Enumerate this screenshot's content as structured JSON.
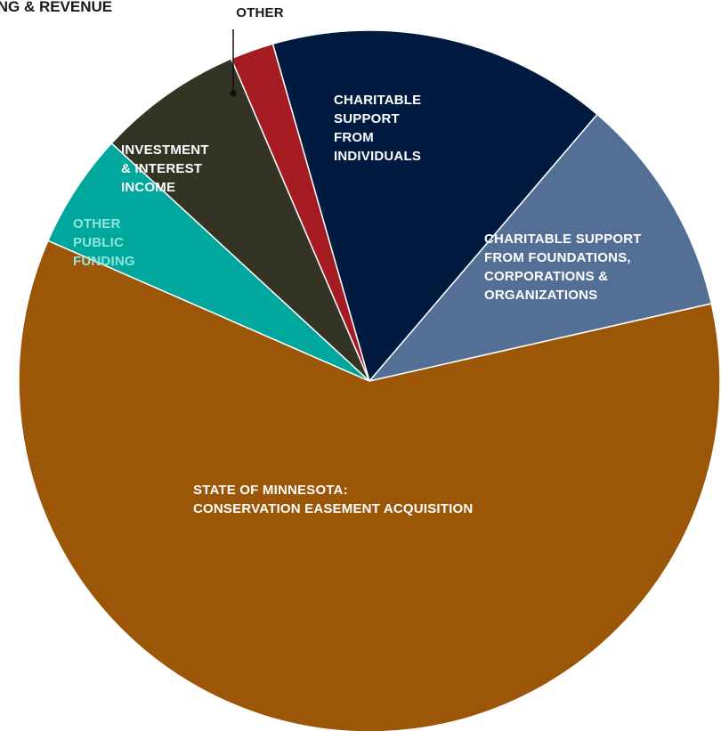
{
  "chart_data": {
    "type": "pie",
    "title": "ING & REVENUE",
    "slices": [
      {
        "label": "CHARITABLE SUPPORT FROM INDIVIDUALS",
        "lines": [
          "CHARITABLE",
          "SUPPORT",
          "FROM",
          "INDIVIDUALS"
        ],
        "value": 15.7,
        "color": "#001a40",
        "text_color": "#ffffff"
      },
      {
        "label": "CHARITABLE SUPPORT FROM FOUNDATIONS, CORPORATIONS & ORGANIZATIONS",
        "lines": [
          "CHARITABLE SUPPORT",
          "FROM FOUNDATIONS,",
          "CORPORATIONS &",
          "ORGANIZATIONS"
        ],
        "value": 10.2,
        "color": "#546f95",
        "text_color": "#ffffff"
      },
      {
        "label": "STATE OF MINNESOTA: CONSERVATION EASEMENT ACQUISITION",
        "lines": [
          "STATE OF MINNESOTA:",
          "CONSERVATION EASEMENT ACQUISITION"
        ],
        "value": 60.1,
        "color": "#9b5608",
        "text_color": "#ffffff"
      },
      {
        "label": "OTHER PUBLIC FUNDING",
        "lines": [
          "OTHER",
          "PUBLIC",
          "FUNDING"
        ],
        "value": 5.3,
        "color": "#00a79d",
        "text_color": "#ffffff"
      },
      {
        "label": "INVESTMENT & INTEREST INCOME",
        "lines": [
          "INVESTMENT",
          "& INTEREST",
          "INCOME"
        ],
        "value": 6.7,
        "color": "#333424",
        "text_color": "#ffffff"
      },
      {
        "label": "OTHER",
        "lines": [
          "OTHER"
        ],
        "value": 2.0,
        "color": "#a51b22",
        "text_color": "#1a1a1a"
      }
    ],
    "start_angle_deg": 344,
    "direction": "clockwise"
  }
}
